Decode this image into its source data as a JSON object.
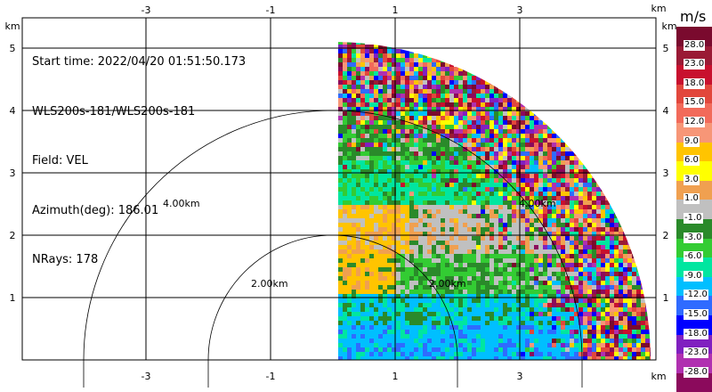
{
  "info": {
    "start_time": "Start time: 2022/04/20 01:51:50.173",
    "instrument": "WLS200s-181/WLS200s-181",
    "field": "Field: VEL",
    "azimuth": "Azimuth(deg): 186.01",
    "nrays": "NRays: 178"
  },
  "axes": {
    "x_ticks": [
      "-3",
      "-1",
      "1",
      "3"
    ],
    "y_ticks": [
      "1",
      "2",
      "3",
      "4",
      "5"
    ],
    "unit_label": "km",
    "range_rings": [
      "2.00km",
      "4.00km"
    ],
    "range_ring_labels_right": [
      "2.00km",
      "4.00km"
    ]
  },
  "colorbar": {
    "unit": "m/s",
    "colors": [
      "#7a0a2e",
      "#9a1a35",
      "#c8102e",
      "#e2473c",
      "#f26a5a",
      "#f79677",
      "#ffc400",
      "#ffff00",
      "#f0a050",
      "#c0c0c0",
      "#2a8a2a",
      "#33cc33",
      "#00e6a0",
      "#00bfff",
      "#2f6bff",
      "#0000ff",
      "#8020c0",
      "#b030b0",
      "#8b0a5c"
    ],
    "labels": [
      "28.0",
      "23.0",
      "18.0",
      "15.0",
      "12.0",
      "9.0",
      "6.0",
      "3.0",
      "1.0",
      "-1.0",
      "-3.0",
      "-6.0",
      "-9.0",
      "-12.0",
      "-15.0",
      "-18.0",
      "-23.0",
      "-28.0"
    ]
  }
}
